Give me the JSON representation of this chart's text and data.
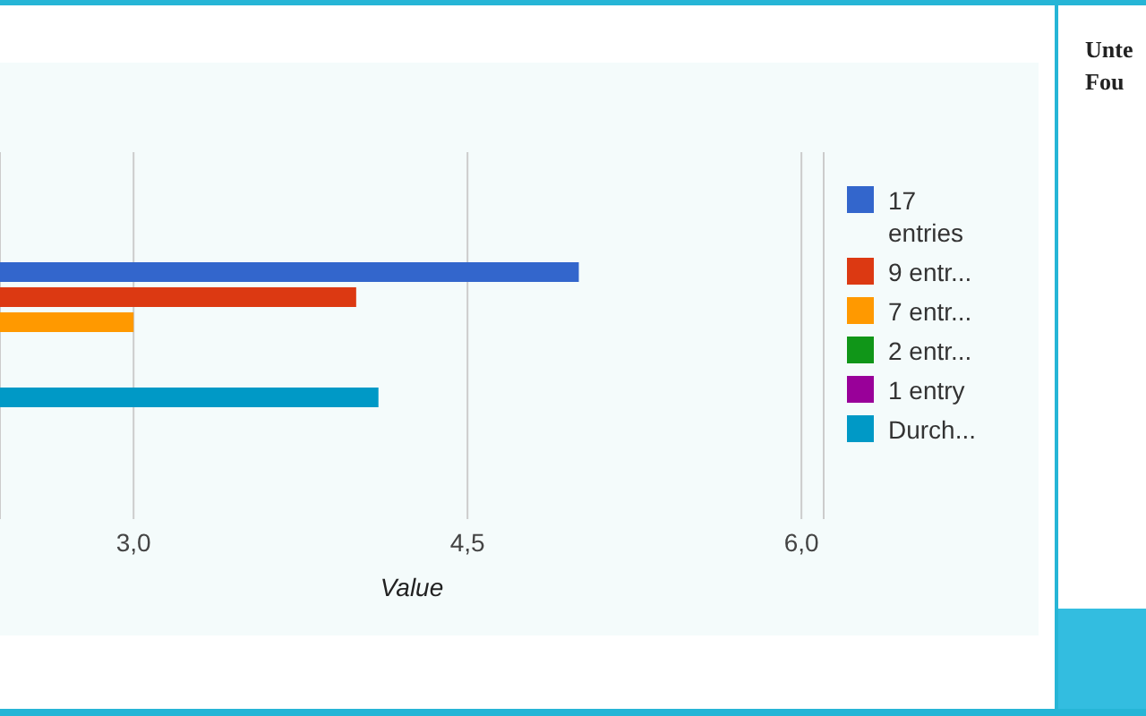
{
  "chart_data": {
    "type": "bar",
    "orientation": "horizontal",
    "categories": [
      null
    ],
    "series": [
      {
        "name": "17 entries",
        "color": "#3366cc",
        "values": [
          5.0
        ]
      },
      {
        "name": "9 entr...",
        "color": "#dc3912",
        "values": [
          4.0
        ]
      },
      {
        "name": "7 entr...",
        "color": "#ff9900",
        "values": [
          3.0
        ]
      },
      {
        "name": "2 entr...",
        "color": "#109618",
        "values": [
          null
        ]
      },
      {
        "name": "1 entry",
        "color": "#990099",
        "values": [
          null
        ]
      },
      {
        "name": "Durch...",
        "color": "#0099c6",
        "values": [
          4.1
        ]
      }
    ],
    "xlabel": "Value",
    "xlim": [
      2.4,
      6.1
    ],
    "xticks": [
      {
        "value": 3,
        "label": "3,0"
      },
      {
        "value": 4.5,
        "label": "4,5"
      },
      {
        "value": 6,
        "label": "6,0"
      }
    ],
    "grid": "x",
    "legend": "right",
    "annotations": [
      "Unte",
      "Fou"
    ]
  }
}
